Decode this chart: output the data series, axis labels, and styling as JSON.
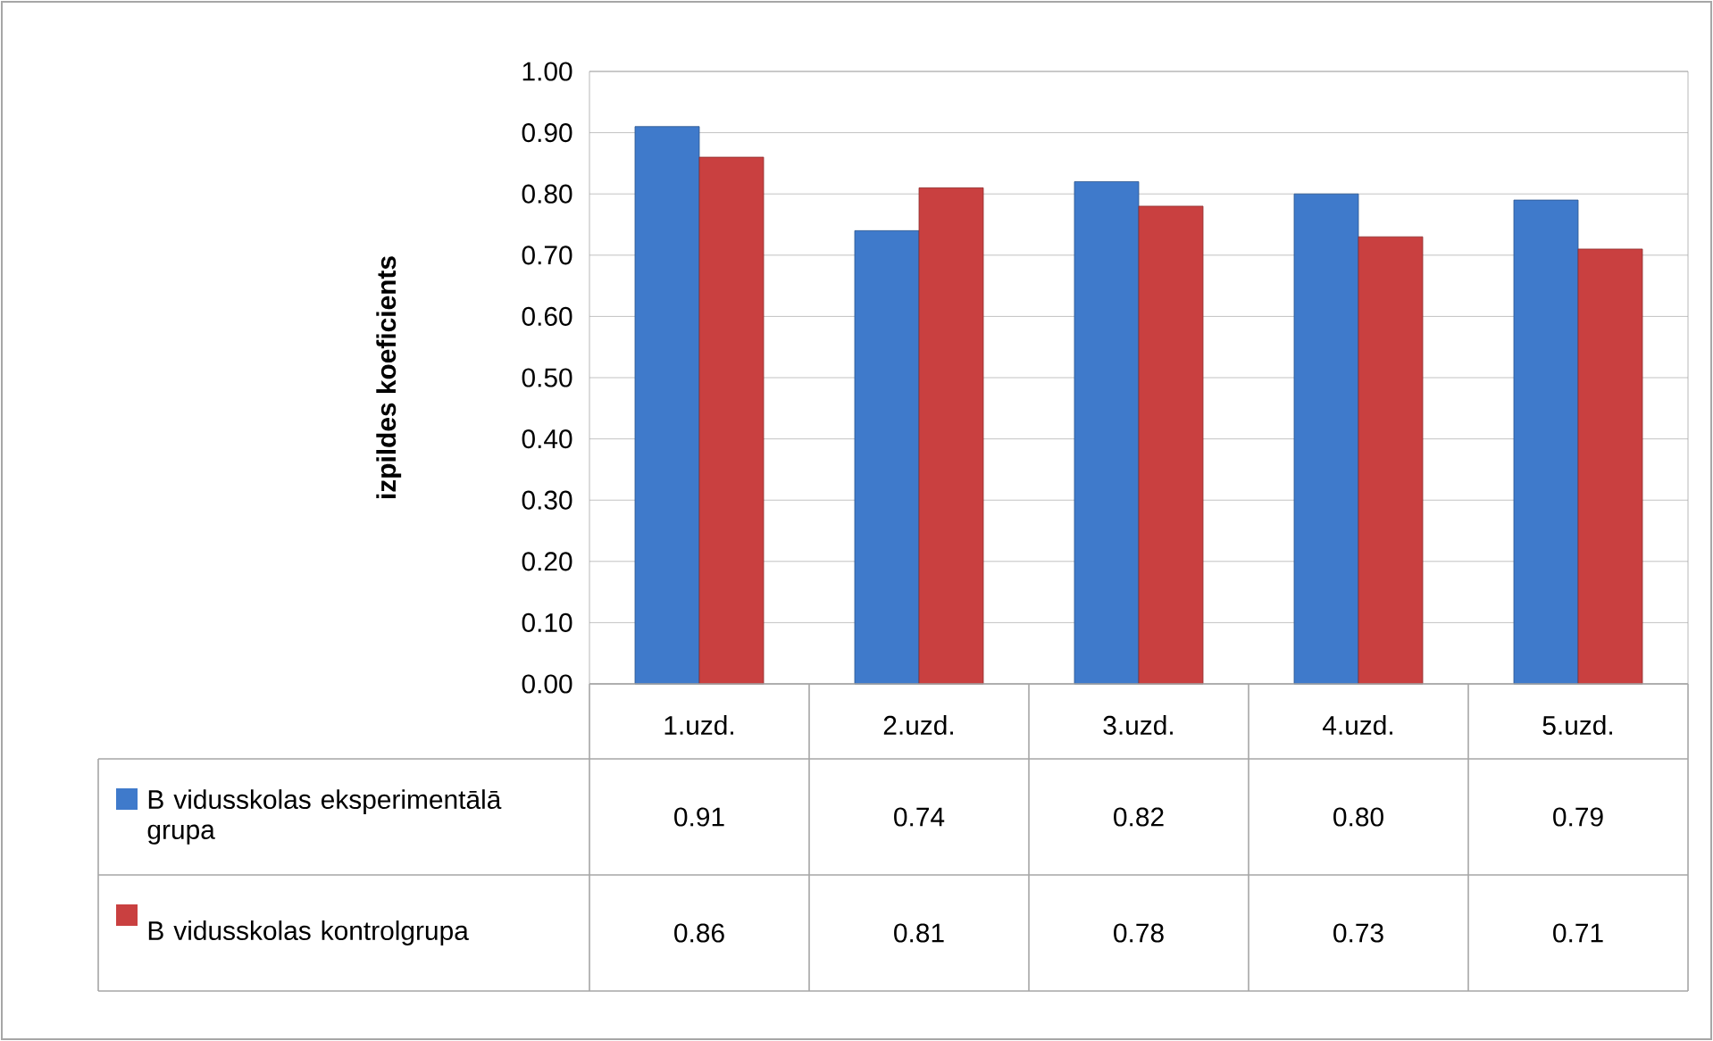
{
  "chart_data": {
    "type": "bar",
    "ylabel": "izpildes koeficients",
    "categories": [
      "1.uzd.",
      "2.uzd.",
      "3.uzd.",
      "4.uzd.",
      "5.uzd."
    ],
    "series": [
      {
        "name": "B vidusskolas eksperimentālā grupa",
        "color": "#3f7acb",
        "values": [
          0.91,
          0.74,
          0.82,
          0.8,
          0.79
        ],
        "value_labels": [
          "0.91",
          "0.74",
          "0.82",
          "0.80",
          "0.79"
        ]
      },
      {
        "name": "B vidusskolas kontrolgrupa",
        "color": "#c94040",
        "values": [
          0.86,
          0.81,
          0.78,
          0.73,
          0.71
        ],
        "value_labels": [
          "0.86",
          "0.81",
          "0.78",
          "0.73",
          "0.71"
        ]
      }
    ],
    "ylim": [
      0,
      1
    ],
    "yticks": [
      {
        "value": 0,
        "label": "0.00"
      },
      {
        "value": 0.1,
        "label": "0.10"
      },
      {
        "value": 0.2,
        "label": "0.20"
      },
      {
        "value": 0.3,
        "label": "0.30"
      },
      {
        "value": 0.4,
        "label": "0.40"
      },
      {
        "value": 0.5,
        "label": "0.50"
      },
      {
        "value": 0.6,
        "label": "0.60"
      },
      {
        "value": 0.7,
        "label": "0.70"
      },
      {
        "value": 0.8,
        "label": "0.80"
      },
      {
        "value": 0.9,
        "label": "0.90"
      },
      {
        "value": 1,
        "label": "1.00"
      }
    ],
    "grid": "y",
    "legend": "bottom"
  }
}
